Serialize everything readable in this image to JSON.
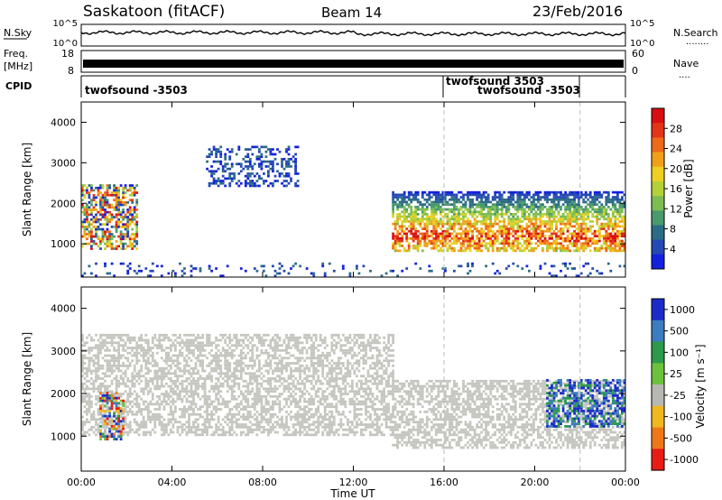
{
  "header": {
    "station": "Saskatoon (fitACF)",
    "beam": "Beam 14",
    "date": "23/Feb/2016"
  },
  "panels": {
    "nsky": {
      "left_label": "N.Sky",
      "ticks_left": [
        "10^5",
        "10^0"
      ],
      "ticks_right": [
        "10^5",
        "10^0"
      ],
      "right_label": "N.Search",
      "right_dots": "........"
    },
    "freq": {
      "label_line1": "Freq.",
      "label_line2": "[MHz]",
      "ticks_left": [
        "18",
        "8"
      ],
      "ticks_right": [
        "60",
        "0"
      ],
      "right_label": "Nave",
      "right_dots": "...."
    },
    "cpid": {
      "label": "CPID",
      "segments": [
        "twofsound -3503",
        "twofsound 3503",
        "twofsound -3503"
      ]
    }
  },
  "chart_data": [
    {
      "type": "heatmap",
      "title": "",
      "ylabel": "Slant Range [km]",
      "xlabel": "",
      "ylim": [
        180,
        4500
      ],
      "x_ticks": [
        "00:00",
        "04:00",
        "08:00",
        "12:00",
        "16:00",
        "20:00",
        "00:00"
      ],
      "y_ticks": [
        1000,
        2000,
        3000,
        4000
      ],
      "colorbar": {
        "label": "Power [dB]",
        "ticks": [
          "4",
          "8",
          "12",
          "16",
          "20",
          "24",
          "28"
        ],
        "colors": [
          "#1420e0",
          "#2448b4",
          "#2c6c86",
          "#4a9a6c",
          "#7cbc52",
          "#b4d038",
          "#eed020",
          "#f0a018",
          "#ee6a18",
          "#e43418",
          "#d80e10"
        ]
      },
      "regions": [
        {
          "t0": 0.0,
          "t1": 2.5,
          "r0": 850,
          "r1": 2450,
          "value": "mixed"
        },
        {
          "t0": 5.5,
          "t1": 9.5,
          "r0": 2400,
          "r1": 3400,
          "value": "low"
        },
        {
          "t0": 13.7,
          "t1": 24.0,
          "r0": 800,
          "r1": 2300,
          "value": "high"
        },
        {
          "t0": 0.0,
          "t1": 24.0,
          "r0": 180,
          "r1": 520,
          "value": "sparse-low"
        }
      ]
    },
    {
      "type": "heatmap",
      "title": "",
      "ylabel": "Slant Range [km]",
      "xlabel": "Time UT",
      "ylim": [
        180,
        4500
      ],
      "x_ticks": [
        "00:00",
        "04:00",
        "08:00",
        "12:00",
        "16:00",
        "20:00",
        "00:00"
      ],
      "y_ticks": [
        1000,
        2000,
        3000,
        4000
      ],
      "colorbar": {
        "label": "Velocity [m s⁻¹]",
        "ticks": [
          "1000",
          "500",
          "100",
          "25",
          "-25",
          "-100",
          "-500",
          "-1000"
        ],
        "colors": [
          "#1c2cc8",
          "#3c7cc0",
          "#2c9a4a",
          "#6cc23c",
          "#b8b8b2",
          "#f0b820",
          "#ee7818",
          "#e81c14"
        ]
      },
      "regions": [
        {
          "t0": 0.0,
          "t1": 13.7,
          "r0": 1000,
          "r1": 3400,
          "value": "ground-scatter"
        },
        {
          "t0": 13.7,
          "t1": 24.0,
          "r0": 700,
          "r1": 2300,
          "value": "ground-scatter"
        },
        {
          "t0": 0.8,
          "t1": 1.9,
          "r0": 900,
          "r1": 2000,
          "value": "mixed"
        },
        {
          "t0": 20.5,
          "t1": 24.0,
          "r0": 1200,
          "r1": 2300,
          "value": "positive"
        }
      ]
    }
  ],
  "vlines_hours": [
    16.0,
    22.0
  ]
}
